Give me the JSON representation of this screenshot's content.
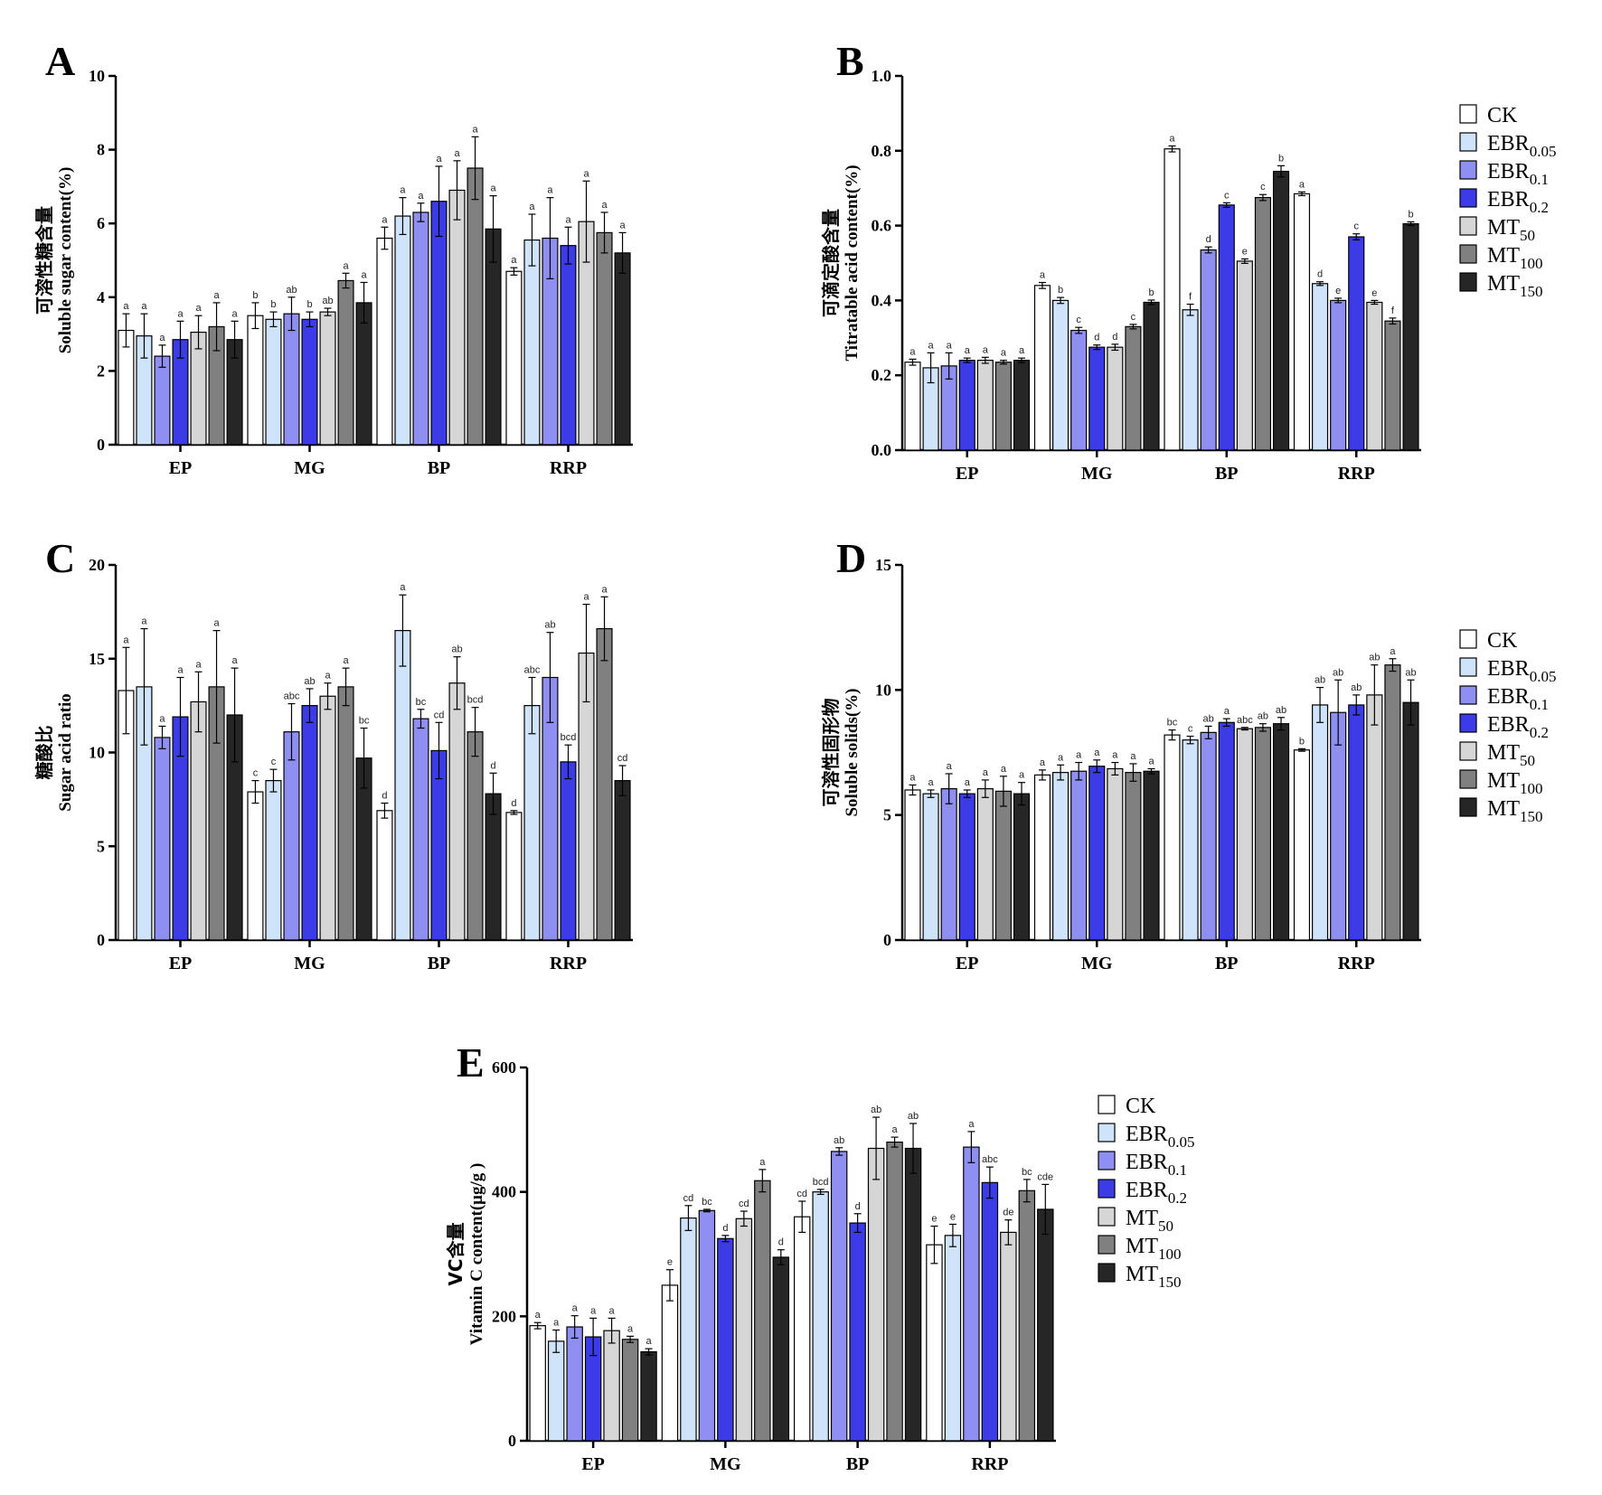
{
  "categories": [
    "EP",
    "MG",
    "BP",
    "RRP"
  ],
  "legend": [
    {
      "base": "CK",
      "sub": "",
      "color": "#ffffff"
    },
    {
      "base": "EBR",
      "sub": "0.05",
      "color": "#cfe4fa"
    },
    {
      "base": "EBR",
      "sub": "0.1",
      "color": "#8f8ff2"
    },
    {
      "base": "EBR",
      "sub": "0.2",
      "color": "#3b3be8"
    },
    {
      "base": "MT",
      "sub": "50",
      "color": "#d6d6d6"
    },
    {
      "base": "MT",
      "sub": "100",
      "color": "#808080"
    },
    {
      "base": "MT",
      "sub": "150",
      "color": "#262626"
    }
  ],
  "chart_data": [
    {
      "panel": "A",
      "type": "bar",
      "ylabel_cn": "可溶性糖含量",
      "ylabel_en": "Soluble sugar content(%)",
      "ylim": [
        0,
        10
      ],
      "yticks": [
        "0",
        "2",
        "4",
        "6",
        "8",
        "10"
      ],
      "categories": [
        "EP",
        "MG",
        "BP",
        "RRP"
      ],
      "series": [
        {
          "name": "CK",
          "values": [
            3.1,
            3.5,
            5.6,
            4.7
          ],
          "errors": [
            0.45,
            0.35,
            0.3,
            0.1
          ],
          "letters": [
            "a",
            "b",
            "a",
            "a"
          ]
        },
        {
          "name": "EBR0.05",
          "values": [
            2.95,
            3.4,
            6.2,
            5.55
          ],
          "errors": [
            0.6,
            0.2,
            0.5,
            0.7
          ],
          "letters": [
            "a",
            "b",
            "a",
            "a"
          ]
        },
        {
          "name": "EBR0.1",
          "values": [
            2.4,
            3.55,
            6.3,
            5.6
          ],
          "errors": [
            0.3,
            0.45,
            0.25,
            1.1
          ],
          "letters": [
            "a",
            "ab",
            "a",
            "a"
          ]
        },
        {
          "name": "EBR0.2",
          "values": [
            2.85,
            3.4,
            6.6,
            5.4
          ],
          "errors": [
            0.5,
            0.2,
            0.95,
            0.5
          ],
          "letters": [
            "a",
            "b",
            "a",
            "a"
          ]
        },
        {
          "name": "MT50",
          "values": [
            3.05,
            3.6,
            6.9,
            6.05
          ],
          "errors": [
            0.45,
            0.1,
            0.8,
            1.1
          ],
          "letters": [
            "a",
            "ab",
            "a",
            "a"
          ]
        },
        {
          "name": "MT100",
          "values": [
            3.2,
            4.45,
            7.5,
            5.75
          ],
          "errors": [
            0.65,
            0.2,
            0.85,
            0.55
          ],
          "letters": [
            "a",
            "a",
            "a",
            "a"
          ]
        },
        {
          "name": "MT150",
          "values": [
            2.85,
            3.85,
            5.85,
            5.2
          ],
          "errors": [
            0.5,
            0.55,
            0.9,
            0.55
          ],
          "letters": [
            "a",
            "a",
            "a",
            "a"
          ]
        }
      ]
    },
    {
      "panel": "B",
      "type": "bar",
      "ylabel_cn": "可滴定酸含量",
      "ylabel_en": "Titratable acid content(%)",
      "ylim": [
        0,
        1.0
      ],
      "yticks": [
        "0.0",
        "0.2",
        "0.4",
        "0.6",
        "0.8",
        "1.0"
      ],
      "categories": [
        "EP",
        "MG",
        "BP",
        "RRP"
      ],
      "series": [
        {
          "name": "CK",
          "values": [
            0.235,
            0.44,
            0.805,
            0.685
          ],
          "errors": [
            0.008,
            0.008,
            0.008,
            0.005
          ],
          "letters": [
            "a",
            "a",
            "a",
            "a"
          ]
        },
        {
          "name": "EBR0.05",
          "values": [
            0.22,
            0.4,
            0.375,
            0.445
          ],
          "errors": [
            0.04,
            0.008,
            0.015,
            0.005
          ],
          "letters": [
            "a",
            "b",
            "f",
            "d"
          ]
        },
        {
          "name": "EBR0.1",
          "values": [
            0.225,
            0.32,
            0.535,
            0.4
          ],
          "errors": [
            0.035,
            0.008,
            0.008,
            0.006
          ],
          "letters": [
            "a",
            "c",
            "d",
            "e"
          ]
        },
        {
          "name": "EBR0.2",
          "values": [
            0.24,
            0.275,
            0.655,
            0.57
          ],
          "errors": [
            0.006,
            0.006,
            0.006,
            0.008
          ],
          "letters": [
            "a",
            "d",
            "c",
            "c"
          ]
        },
        {
          "name": "MT50",
          "values": [
            0.24,
            0.275,
            0.505,
            0.395
          ],
          "errors": [
            0.008,
            0.008,
            0.006,
            0.005
          ],
          "letters": [
            "a",
            "d",
            "e",
            "e"
          ]
        },
        {
          "name": "MT100",
          "values": [
            0.235,
            0.33,
            0.675,
            0.345
          ],
          "errors": [
            0.005,
            0.006,
            0.008,
            0.008
          ],
          "letters": [
            "a",
            "c",
            "c",
            "f"
          ]
        },
        {
          "name": "MT150",
          "values": [
            0.24,
            0.395,
            0.745,
            0.605
          ],
          "errors": [
            0.006,
            0.006,
            0.015,
            0.005
          ],
          "letters": [
            "a",
            "b",
            "b",
            "b"
          ]
        }
      ]
    },
    {
      "panel": "C",
      "type": "bar",
      "ylabel_cn": "糖酸比",
      "ylabel_en": "Sugar acid ratio",
      "ylim": [
        0,
        20
      ],
      "yticks": [
        "0",
        "5",
        "10",
        "15",
        "20"
      ],
      "categories": [
        "EP",
        "MG",
        "BP",
        "RRP"
      ],
      "series": [
        {
          "name": "CK",
          "values": [
            13.3,
            7.9,
            6.9,
            6.8
          ],
          "errors": [
            2.3,
            0.6,
            0.4,
            0.1
          ],
          "letters": [
            "a",
            "c",
            "d",
            "d"
          ]
        },
        {
          "name": "EBR0.05",
          "values": [
            13.5,
            8.5,
            16.5,
            12.5
          ],
          "errors": [
            3.1,
            0.6,
            1.9,
            1.5
          ],
          "letters": [
            "a",
            "c",
            "a",
            "abc"
          ]
        },
        {
          "name": "EBR0.1",
          "values": [
            10.8,
            11.1,
            11.8,
            14.0
          ],
          "errors": [
            0.6,
            1.5,
            0.5,
            2.4
          ],
          "letters": [
            "a",
            "abc",
            "bc",
            "ab"
          ]
        },
        {
          "name": "EBR0.2",
          "values": [
            11.9,
            12.5,
            10.1,
            9.5
          ],
          "errors": [
            2.1,
            0.9,
            1.5,
            0.9
          ],
          "letters": [
            "a",
            "ab",
            "cd",
            "bcd"
          ]
        },
        {
          "name": "MT50",
          "values": [
            12.7,
            13.0,
            13.7,
            15.3
          ],
          "errors": [
            1.6,
            0.7,
            1.4,
            2.6
          ],
          "letters": [
            "a",
            "a",
            "ab",
            "a"
          ]
        },
        {
          "name": "MT100",
          "values": [
            13.5,
            13.5,
            11.1,
            16.6
          ],
          "errors": [
            3.0,
            1.0,
            1.3,
            1.7
          ],
          "letters": [
            "a",
            "a",
            "bcd",
            "a"
          ]
        },
        {
          "name": "MT150",
          "values": [
            12.0,
            9.7,
            7.8,
            8.5
          ],
          "errors": [
            2.5,
            1.6,
            1.1,
            0.8
          ],
          "letters": [
            "a",
            "bc",
            "d",
            "cd"
          ]
        }
      ]
    },
    {
      "panel": "D",
      "type": "bar",
      "ylabel_cn": "可溶性固形物",
      "ylabel_en": "Soluble solids(%)",
      "ylim": [
        0,
        15
      ],
      "yticks": [
        "0",
        "5",
        "10",
        "15"
      ],
      "categories": [
        "EP",
        "MG",
        "BP",
        "RRP"
      ],
      "series": [
        {
          "name": "CK",
          "values": [
            6.0,
            6.6,
            8.2,
            7.6
          ],
          "errors": [
            0.2,
            0.2,
            0.2,
            0.05
          ],
          "letters": [
            "a",
            "a",
            "bc",
            "b"
          ]
        },
        {
          "name": "EBR0.05",
          "values": [
            5.85,
            6.7,
            8.0,
            9.4
          ],
          "errors": [
            0.15,
            0.3,
            0.15,
            0.7
          ],
          "letters": [
            "a",
            "a",
            "c",
            "ab"
          ]
        },
        {
          "name": "EBR0.1",
          "values": [
            6.05,
            6.75,
            8.3,
            9.1
          ],
          "errors": [
            0.6,
            0.35,
            0.25,
            1.3
          ],
          "letters": [
            "a",
            "a",
            "ab",
            "ab"
          ]
        },
        {
          "name": "EBR0.2",
          "values": [
            5.85,
            6.95,
            8.7,
            9.4
          ],
          "errors": [
            0.15,
            0.25,
            0.15,
            0.4
          ],
          "letters": [
            "a",
            "a",
            "a",
            "ab"
          ]
        },
        {
          "name": "MT50",
          "values": [
            6.05,
            6.85,
            8.45,
            9.8
          ],
          "errors": [
            0.35,
            0.25,
            0.05,
            1.2
          ],
          "letters": [
            "a",
            "a",
            "abc",
            "ab"
          ]
        },
        {
          "name": "MT100",
          "values": [
            5.95,
            6.7,
            8.5,
            11.0
          ],
          "errors": [
            0.6,
            0.35,
            0.15,
            0.25
          ],
          "letters": [
            "a",
            "a",
            "ab",
            "a"
          ]
        },
        {
          "name": "MT150",
          "values": [
            5.85,
            6.75,
            8.65,
            9.5
          ],
          "errors": [
            0.45,
            0.1,
            0.25,
            0.9
          ],
          "letters": [
            "a",
            "a",
            "ab",
            "ab"
          ]
        }
      ]
    },
    {
      "panel": "E",
      "type": "bar",
      "ylabel_cn": "VC含量",
      "ylabel_en": "Vitamin C content(μg/g )",
      "ylim": [
        0,
        600
      ],
      "yticks": [
        "0",
        "200",
        "400",
        "600"
      ],
      "categories": [
        "EP",
        "MG",
        "BP",
        "RRP"
      ],
      "series": [
        {
          "name": "CK",
          "values": [
            185,
            250,
            360,
            315
          ],
          "errors": [
            5,
            25,
            25,
            30
          ],
          "letters": [
            "a",
            "e",
            "cd",
            "e"
          ]
        },
        {
          "name": "EBR0.05",
          "values": [
            160,
            358,
            400,
            330
          ],
          "errors": [
            18,
            20,
            4,
            18
          ],
          "letters": [
            "a",
            "cd",
            "bcd",
            "e"
          ]
        },
        {
          "name": "EBR0.1",
          "values": [
            183,
            370,
            465,
            472
          ],
          "errors": [
            18,
            2,
            6,
            25
          ],
          "letters": [
            "a",
            "bc",
            "ab",
            "a"
          ]
        },
        {
          "name": "EBR0.2",
          "values": [
            167,
            325,
            350,
            415
          ],
          "errors": [
            30,
            5,
            15,
            25
          ],
          "letters": [
            "a",
            "d",
            "d",
            "abc"
          ]
        },
        {
          "name": "MT50",
          "values": [
            177,
            357,
            470,
            335
          ],
          "errors": [
            20,
            12,
            50,
            20
          ],
          "letters": [
            "a",
            "cd",
            "ab",
            "de"
          ]
        },
        {
          "name": "MT100",
          "values": [
            163,
            418,
            480,
            402
          ],
          "errors": [
            5,
            18,
            8,
            18
          ],
          "letters": [
            "a",
            "a",
            "a",
            "bc"
          ]
        },
        {
          "name": "MT150",
          "values": [
            143,
            295,
            470,
            372
          ],
          "errors": [
            5,
            12,
            40,
            40
          ],
          "letters": [
            "a",
            "d",
            "ab",
            "cde"
          ]
        }
      ]
    }
  ]
}
